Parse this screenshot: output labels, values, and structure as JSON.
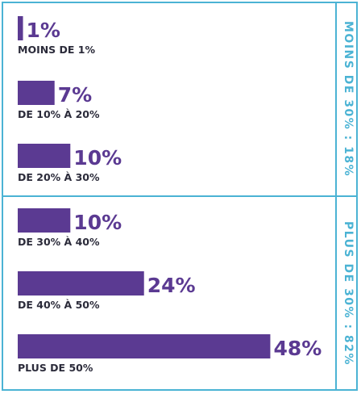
{
  "colors": {
    "bar": "#5b3a92",
    "frame": "#4bb3d4",
    "label": "#2b2b3a"
  },
  "groups": [
    {
      "label": "MOINS DE 30% : 18%"
    },
    {
      "label": "PLUS DE 30% : 82%"
    }
  ],
  "chart_data": {
    "type": "bar",
    "orientation": "horizontal",
    "categories": [
      "MOINS DE 1%",
      "DE 10% À 20%",
      "DE 20% À 30%",
      "DE 30% À 40%",
      "DE 40% À 50%",
      "PLUS DE 50%"
    ],
    "values": [
      1,
      7,
      10,
      10,
      24,
      48
    ],
    "value_labels": [
      "1%",
      "7%",
      "10%",
      "10%",
      "24%",
      "48%"
    ],
    "unit": "%",
    "groups": [
      {
        "label": "MOINS DE 30% : 18%",
        "categories": [
          "MOINS DE 1%",
          "DE 10% À 20%",
          "DE 20% À 30%"
        ]
      },
      {
        "label": "PLUS DE 30% : 82%",
        "categories": [
          "DE 30% À 40%",
          "DE 40% À 50%",
          "PLUS DE 50%"
        ]
      }
    ],
    "grid": false,
    "legend": "none"
  }
}
